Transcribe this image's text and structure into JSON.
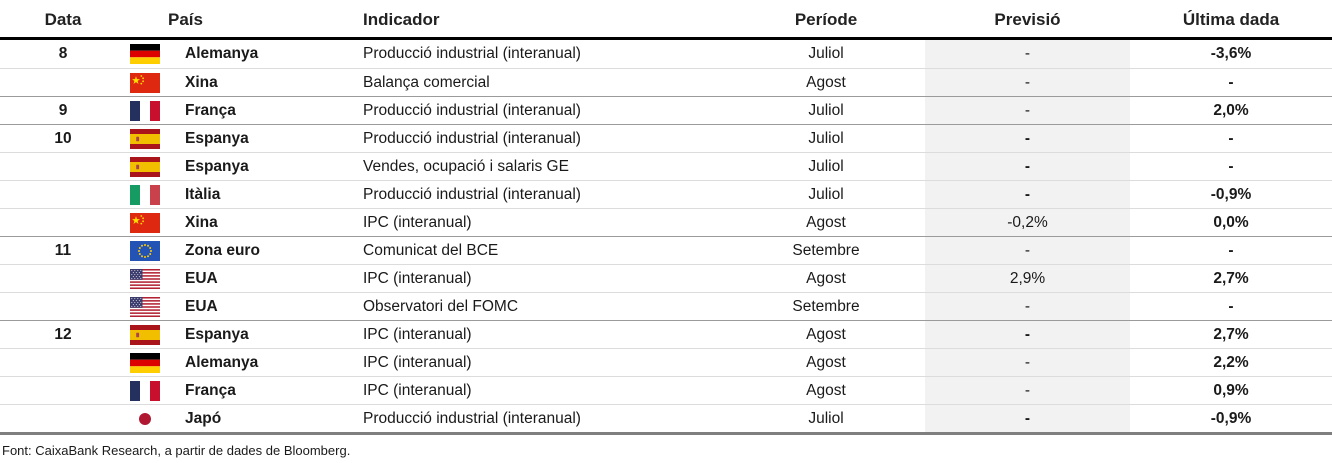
{
  "header": {
    "columns": [
      "Data",
      "País",
      "Indicador",
      "Període",
      "Previsió",
      "Última dada"
    ]
  },
  "table": {
    "rows": [
      {
        "date": "8",
        "flag_icon": "germany-flag-icon",
        "country": "Alemanya",
        "indicator": "Producció industrial (interanual)",
        "period": "Juliol",
        "forecast": "-",
        "forecast_bold": false,
        "last": "-3,6%",
        "group_start": false
      },
      {
        "date": "",
        "flag_icon": "china-flag-icon",
        "country": "Xina",
        "indicator": "Balança comercial",
        "period": "Agost",
        "forecast": "-",
        "forecast_bold": false,
        "last": "-",
        "group_start": false
      },
      {
        "date": "9",
        "flag_icon": "france-flag-icon",
        "country": "França",
        "indicator": "Producció industrial (interanual)",
        "period": "Juliol",
        "forecast": "-",
        "forecast_bold": false,
        "last": "2,0%",
        "group_start": true
      },
      {
        "date": "10",
        "flag_icon": "spain-flag-icon",
        "country": "Espanya",
        "indicator": "Producció industrial (interanual)",
        "period": "Juliol",
        "forecast": "-",
        "forecast_bold": true,
        "last": "-",
        "group_start": true
      },
      {
        "date": "",
        "flag_icon": "spain-flag-icon",
        "country": "Espanya",
        "indicator": "Vendes, ocupació i salaris GE",
        "period": "Juliol",
        "forecast": "-",
        "forecast_bold": true,
        "last": "-",
        "group_start": false
      },
      {
        "date": "",
        "flag_icon": "italy-flag-icon",
        "country": "Itàlia",
        "indicator": "Producció industrial (interanual)",
        "period": "Juliol",
        "forecast": "-",
        "forecast_bold": true,
        "last": "-0,9%",
        "group_start": false
      },
      {
        "date": "",
        "flag_icon": "china-flag-icon",
        "country": "Xina",
        "indicator": "IPC (interanual)",
        "period": "Agost",
        "forecast": "-0,2%",
        "forecast_bold": false,
        "last": "0,0%",
        "group_start": false
      },
      {
        "date": "11",
        "flag_icon": "eu-flag-icon",
        "country": "Zona euro",
        "indicator": "Comunicat del BCE",
        "period": "Setembre",
        "forecast": "-",
        "forecast_bold": false,
        "last": "-",
        "group_start": true
      },
      {
        "date": "",
        "flag_icon": "usa-flag-icon",
        "country": "EUA",
        "indicator": "IPC (interanual)",
        "period": "Agost",
        "forecast": "2,9%",
        "forecast_bold": false,
        "last": "2,7%",
        "group_start": false
      },
      {
        "date": "",
        "flag_icon": "usa-flag-icon",
        "country": "EUA",
        "indicator": "Observatori del FOMC",
        "period": "Setembre",
        "forecast": "-",
        "forecast_bold": false,
        "last": "-",
        "group_start": false
      },
      {
        "date": "12",
        "flag_icon": "spain-flag-icon",
        "country": "Espanya",
        "indicator": "IPC (interanual)",
        "period": "Agost",
        "forecast": "-",
        "forecast_bold": true,
        "last": "2,7%",
        "group_start": true
      },
      {
        "date": "",
        "flag_icon": "germany-flag-icon",
        "country": "Alemanya",
        "indicator": "IPC (interanual)",
        "period": "Agost",
        "forecast": "-",
        "forecast_bold": false,
        "last": "2,2%",
        "group_start": false
      },
      {
        "date": "",
        "flag_icon": "france-flag-icon",
        "country": "França",
        "indicator": "IPC (interanual)",
        "period": "Agost",
        "forecast": "-",
        "forecast_bold": false,
        "last": "0,9%",
        "group_start": false
      },
      {
        "date": "",
        "flag_icon": "japan-flag-icon",
        "country": "Japó",
        "indicator": "Producció industrial (interanual)",
        "period": "Juliol",
        "forecast": "-",
        "forecast_bold": true,
        "last": "-0,9%",
        "group_start": false
      }
    ]
  },
  "footer": {
    "source": "Font: CaixaBank Research, a partir de dades de Bloomberg."
  },
  "colors": {
    "forecast_band": "#f2f2f2",
    "header_rule": "#000000",
    "bottom_rule": "#7f7f7f",
    "row_separator": "#dcdcdc",
    "group_separator": "#9b9b9b"
  }
}
